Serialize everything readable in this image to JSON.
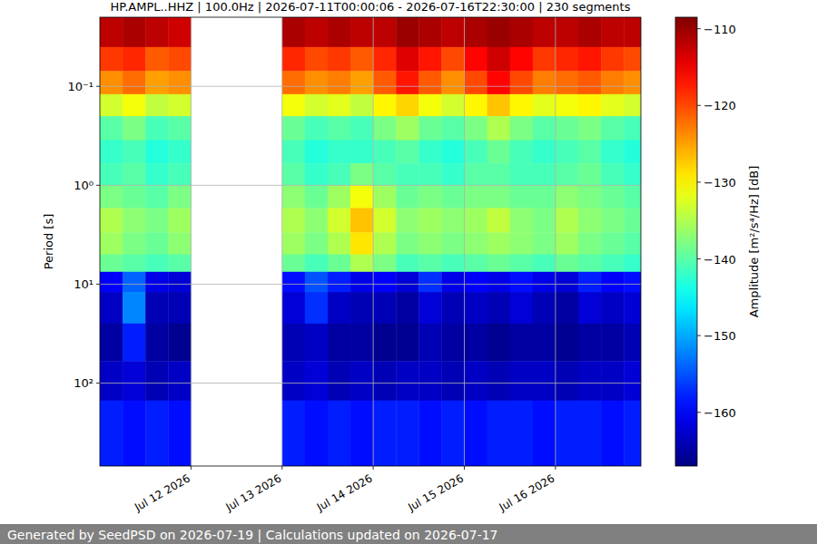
{
  "chart_data": {
    "type": "heatmap",
    "title": "HP.AMPL..HHZ | 100.0Hz | 2026-07-11T00:00:06 - 2026-07-16T22:30:00 | 230 segments",
    "y_label": "Period [s]",
    "footer": "Generated by SeedPSD on 2026-07-19 | Calculations updated on 2026-07-17",
    "log": "y",
    "grid": true,
    "xlim": [
      "2026-07-11T00:00:06",
      "2026-07-16T22:30:00"
    ],
    "xticks": [
      {
        "value": "2026-07-12T00:00:00",
        "label": "Jul 12 2026"
      },
      {
        "value": "2026-07-13T00:00:00",
        "label": "Jul 13 2026"
      },
      {
        "value": "2026-07-14T00:00:00",
        "label": "Jul 14 2026"
      },
      {
        "value": "2026-07-15T00:00:00",
        "label": "Jul 15 2026"
      },
      {
        "value": "2026-07-16T00:00:00",
        "label": "Jul 16 2026"
      }
    ],
    "ylim": [
      0.02,
      690
    ],
    "yticks": [
      {
        "value": 0.1,
        "label": "10⁻¹"
      },
      {
        "value": 1,
        "label": "10⁰"
      },
      {
        "value": 10,
        "label": "10¹"
      },
      {
        "value": 100,
        "label": "10²"
      }
    ],
    "x_bins": [
      "2026-07-11T00:00:00",
      "2026-07-11T06:00:00",
      "2026-07-11T12:00:00",
      "2026-07-11T18:00:00",
      "2026-07-12T00:00:00",
      "2026-07-12T06:00:00",
      "2026-07-12T12:00:00",
      "2026-07-12T18:00:00",
      "2026-07-13T00:00:00",
      "2026-07-13T06:00:00",
      "2026-07-13T12:00:00",
      "2026-07-13T18:00:00",
      "2026-07-14T00:00:00",
      "2026-07-14T06:00:00",
      "2026-07-14T12:00:00",
      "2026-07-14T18:00:00",
      "2026-07-15T00:00:00",
      "2026-07-15T06:00:00",
      "2026-07-15T12:00:00",
      "2026-07-15T18:00:00",
      "2026-07-16T00:00:00",
      "2026-07-16T06:00:00",
      "2026-07-16T12:00:00",
      "2026-07-16T18:00:00",
      "2026-07-17T00:00:00"
    ],
    "y_bins": [
      0.02,
      0.04,
      0.07,
      0.12,
      0.2,
      0.35,
      0.6,
      1,
      1.7,
      3,
      5,
      7.5,
      12,
      25,
      60,
      150,
      690
    ],
    "cells": [
      [
        -112,
        -111,
        -112,
        -113,
        null,
        null,
        null,
        null,
        -111,
        -112,
        -111,
        -112,
        -112,
        -110,
        -111,
        -112,
        -111,
        -110,
        -111,
        -112,
        -112,
        -111,
        -112,
        -112
      ],
      [
        -119,
        -118,
        -121,
        -120,
        null,
        null,
        null,
        null,
        -118,
        -120,
        -119,
        -121,
        -118,
        -114,
        -117,
        -120,
        -116,
        -113,
        -116,
        -119,
        -118,
        -117,
        -119,
        -120
      ],
      [
        -124,
        -122,
        -125,
        -124,
        null,
        null,
        null,
        null,
        -122,
        -124,
        -123,
        -125,
        -121,
        -117,
        -121,
        -124,
        -120,
        -116,
        -120,
        -123,
        -122,
        -121,
        -123,
        -124
      ],
      [
        -133,
        -131,
        -134,
        -133,
        null,
        null,
        null,
        null,
        -131,
        -133,
        -132,
        -134,
        -130,
        -128,
        -131,
        -133,
        -130,
        -127,
        -130,
        -132,
        -131,
        -130,
        -132,
        -133
      ],
      [
        -140,
        -138,
        -141,
        -140,
        null,
        null,
        null,
        null,
        -139,
        -141,
        -140,
        -141,
        -138,
        -136,
        -139,
        -140,
        -138,
        -135,
        -138,
        -140,
        -139,
        -138,
        -140,
        -141
      ],
      [
        -142,
        -141,
        -143,
        -142,
        null,
        null,
        null,
        null,
        -141,
        -143,
        -142,
        -142,
        -141,
        -140,
        -142,
        -143,
        -141,
        -139,
        -141,
        -142,
        -141,
        -140,
        -142,
        -143
      ],
      [
        -141,
        -140,
        -142,
        -141,
        null,
        null,
        null,
        null,
        -140,
        -142,
        -141,
        -138,
        -140,
        -141,
        -141,
        -142,
        -140,
        -140,
        -141,
        -141,
        -140,
        -139,
        -141,
        -142
      ],
      [
        -138,
        -139,
        -140,
        -138,
        null,
        null,
        null,
        null,
        -137,
        -139,
        -136,
        -131,
        -136,
        -139,
        -138,
        -139,
        -138,
        -138,
        -139,
        -139,
        -137,
        -138,
        -139,
        -140
      ],
      [
        -135,
        -137,
        -138,
        -136,
        null,
        null,
        null,
        null,
        -135,
        -137,
        -133,
        -127,
        -133,
        -137,
        -136,
        -137,
        -136,
        -134,
        -137,
        -138,
        -135,
        -137,
        -138,
        -139
      ],
      [
        -136,
        -138,
        -139,
        -137,
        null,
        null,
        null,
        null,
        -136,
        -138,
        -135,
        -129,
        -135,
        -138,
        -137,
        -138,
        -137,
        -136,
        -137,
        -138,
        -136,
        -138,
        -139,
        -140
      ],
      [
        -139,
        -140,
        -141,
        -140,
        null,
        null,
        null,
        null,
        -139,
        -141,
        -139,
        -135,
        -138,
        -141,
        -140,
        -141,
        -140,
        -139,
        -140,
        -141,
        -139,
        -140,
        -141,
        -142
      ],
      [
        -160,
        -154,
        -161,
        -162,
        null,
        null,
        null,
        null,
        -159,
        -155,
        -158,
        -161,
        -160,
        -162,
        -157,
        -161,
        -160,
        -161,
        -159,
        -161,
        -162,
        -158,
        -160,
        -159
      ],
      [
        -163,
        -152,
        -164,
        -164,
        null,
        null,
        null,
        null,
        -162,
        -157,
        -163,
        -164,
        -164,
        -165,
        -162,
        -164,
        -163,
        -164,
        -162,
        -164,
        -165,
        -162,
        -163,
        -162
      ],
      [
        -165,
        -158,
        -165,
        -166,
        null,
        null,
        null,
        null,
        -164,
        -163,
        -165,
        -165,
        -166,
        -166,
        -164,
        -165,
        -165,
        -166,
        -165,
        -165,
        -166,
        -165,
        -165,
        -164
      ],
      [
        -163,
        -162,
        -164,
        -163,
        null,
        null,
        null,
        null,
        -163,
        -162,
        -164,
        -163,
        -164,
        -163,
        -163,
        -164,
        -163,
        -164,
        -163,
        -163,
        -164,
        -163,
        -163,
        -162
      ],
      [
        -158,
        -159,
        -158,
        -159,
        null,
        null,
        null,
        null,
        -158,
        -159,
        -158,
        -159,
        -158,
        -158,
        -159,
        -158,
        -159,
        -158,
        -158,
        -159,
        -158,
        -158,
        -159,
        -158
      ]
    ],
    "colorbar": {
      "label": "Amplitude [m²/s⁴/Hz] [dB]",
      "range": [
        -167,
        -108.5
      ],
      "ticks": [
        -160,
        -150,
        -140,
        -130,
        -120,
        -110
      ]
    }
  }
}
